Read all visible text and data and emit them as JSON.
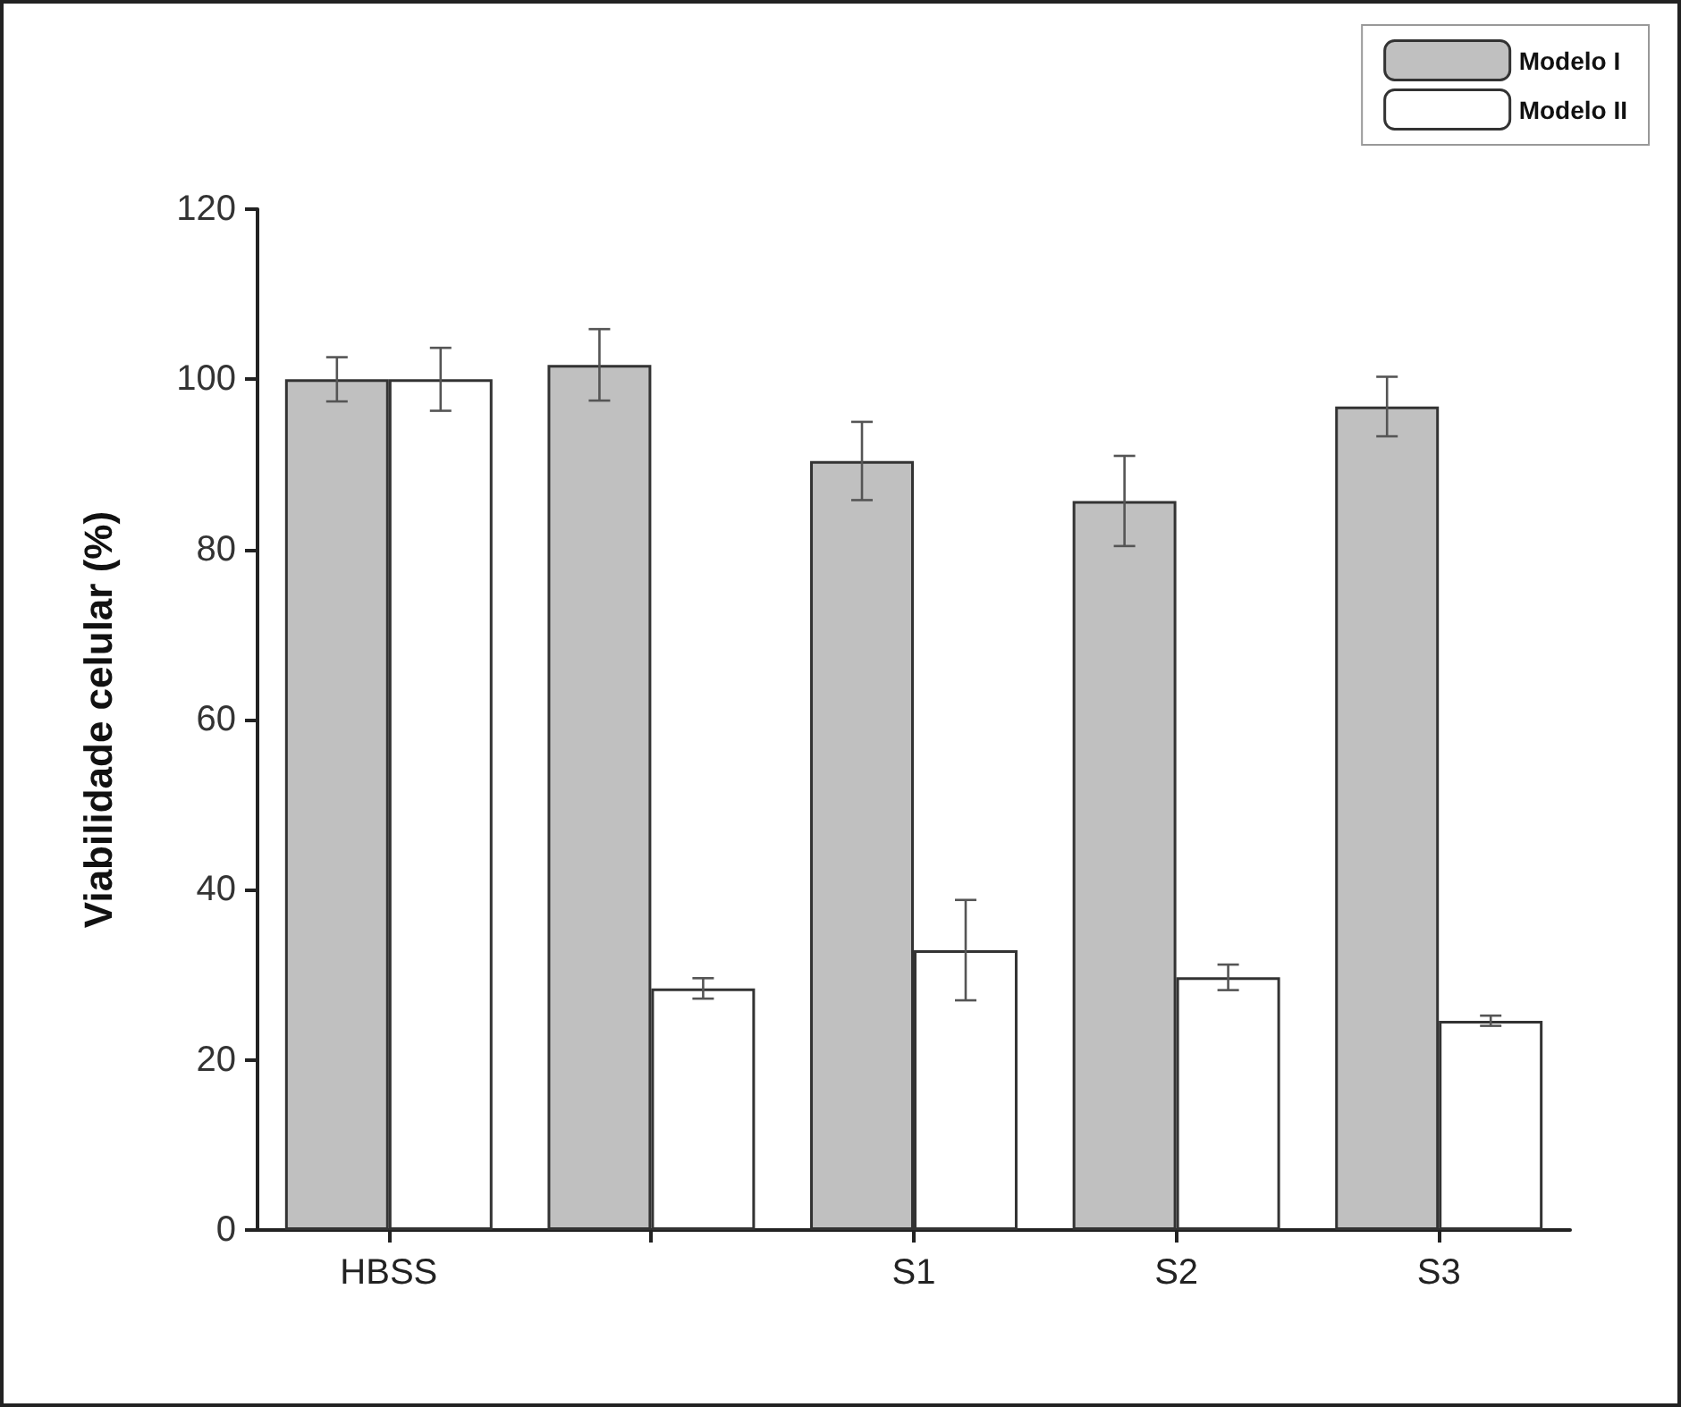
{
  "chart_data": {
    "type": "bar",
    "ylabel": "Viabilidade celular (%)",
    "categories": [
      "HBSS",
      null,
      "S1",
      "S2",
      "S3"
    ],
    "series": [
      {
        "name": "Modelo I",
        "color": "#c0c0c0",
        "values": [
          100,
          101.7,
          90.4,
          85.7,
          96.8
        ],
        "errors": [
          2.6,
          4.2,
          4.6,
          5.3,
          3.5
        ]
      },
      {
        "name": "Modelo II",
        "color": "#ffffff",
        "values": [
          100,
          28.4,
          32.9,
          29.7,
          24.6
        ],
        "errors": [
          3.7,
          1.2,
          5.9,
          1.5,
          0.6
        ]
      }
    ],
    "ylim": [
      0,
      120
    ],
    "yticks": [
      0,
      20,
      40,
      60,
      80,
      100,
      120
    ],
    "grid": false,
    "legend": "top right"
  }
}
